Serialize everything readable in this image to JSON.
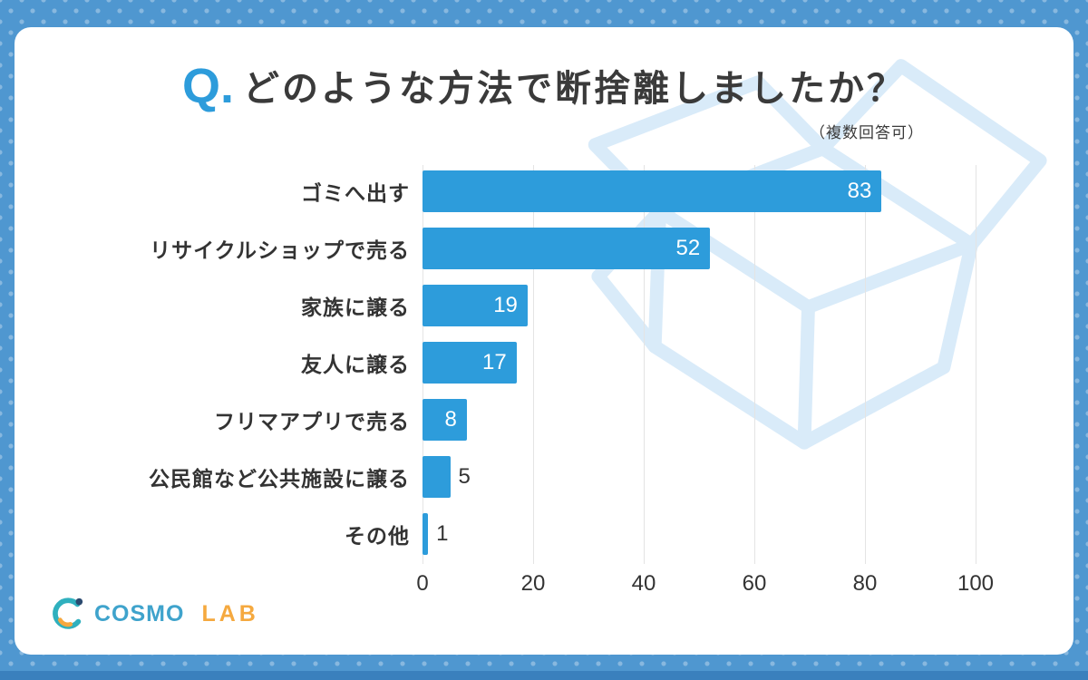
{
  "page": {
    "background_color": "#4f97d0",
    "card_color": "#ffffff"
  },
  "header": {
    "q_prefix": "Q.",
    "title": "どのような方法で断捨離しましたか？",
    "note": "（複数回答可）"
  },
  "chart_data": {
    "type": "bar",
    "orientation": "horizontal",
    "title": "どのような方法で断捨離しましたか？",
    "subtitle": "（複数回答可）",
    "categories": [
      "ゴミへ出す",
      "リサイクルショップで売る",
      "家族に譲る",
      "友人に譲る",
      "フリマアプリで売る",
      "公民館など公共施設に譲る",
      "その他"
    ],
    "values": [
      83,
      52,
      19,
      17,
      8,
      5,
      1
    ],
    "xlim": [
      0,
      100
    ],
    "x_ticks": [
      0,
      20,
      40,
      60,
      80,
      100
    ],
    "grid": true,
    "bar_color": "#2D9CDB",
    "value_label_inside_color": "#ffffff",
    "value_label_outside_color": "#333333",
    "legend": "none"
  },
  "footer": {
    "logo_text_1": "COSMO",
    "logo_text_2": "LAB"
  }
}
